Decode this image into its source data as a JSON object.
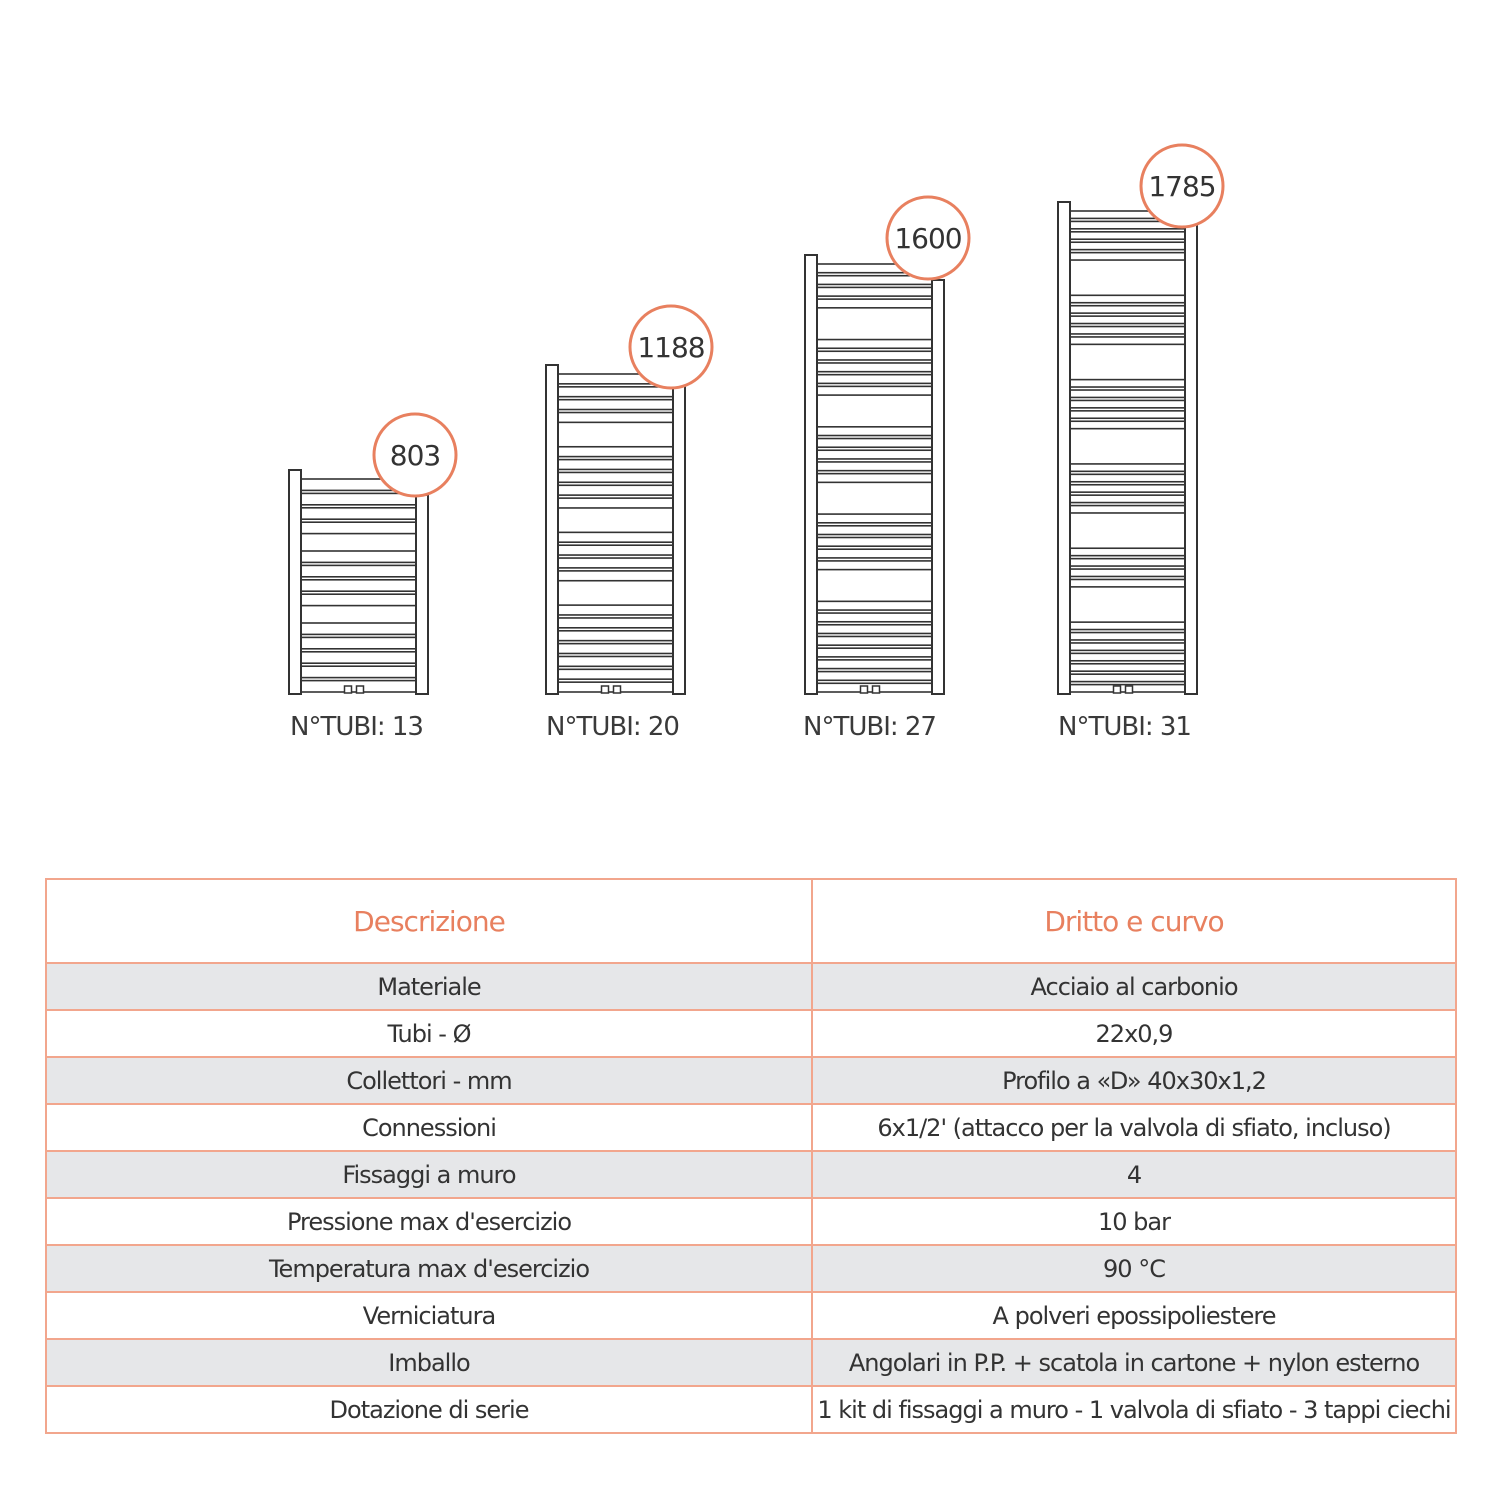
{
  "accent_color": "#e8805f",
  "radiators": [
    {
      "height_mm": "803",
      "tubes_label": "N°TUBI: 13",
      "tubes": 13
    },
    {
      "height_mm": "1188",
      "tubes_label": "N°TUBI: 20",
      "tubes": 20
    },
    {
      "height_mm": "1600",
      "tubes_label": "N°TUBI: 27",
      "tubes": 27
    },
    {
      "height_mm": "1785",
      "tubes_label": "N°TUBI: 31",
      "tubes": 31
    }
  ],
  "table": {
    "headers": [
      "Descrizione",
      "Dritto e curvo"
    ],
    "rows": [
      [
        "Materiale",
        "Acciaio al carbonio"
      ],
      [
        "Tubi - Ø",
        "22x0,9"
      ],
      [
        "Collettori - mm",
        "Profilo a «D» 40x30x1,2"
      ],
      [
        "Connessioni",
        "6x1/2' (attacco per la valvola di sfiato, incluso)"
      ],
      [
        "Fissaggi a muro",
        "4"
      ],
      [
        "Pressione max d'esercizio",
        "10 bar"
      ],
      [
        "Temperatura max d'esercizio",
        "90 °C"
      ],
      [
        "Verniciatura",
        "A polveri epossipoliestere"
      ],
      [
        "Imballo",
        "Angolari in P.P. + scatola in cartone + nylon esterno"
      ],
      [
        "Dotazione di serie",
        "1 kit di fissaggi a muro - 1 valvola di sfiato - 3 tappi ciechi"
      ]
    ]
  }
}
